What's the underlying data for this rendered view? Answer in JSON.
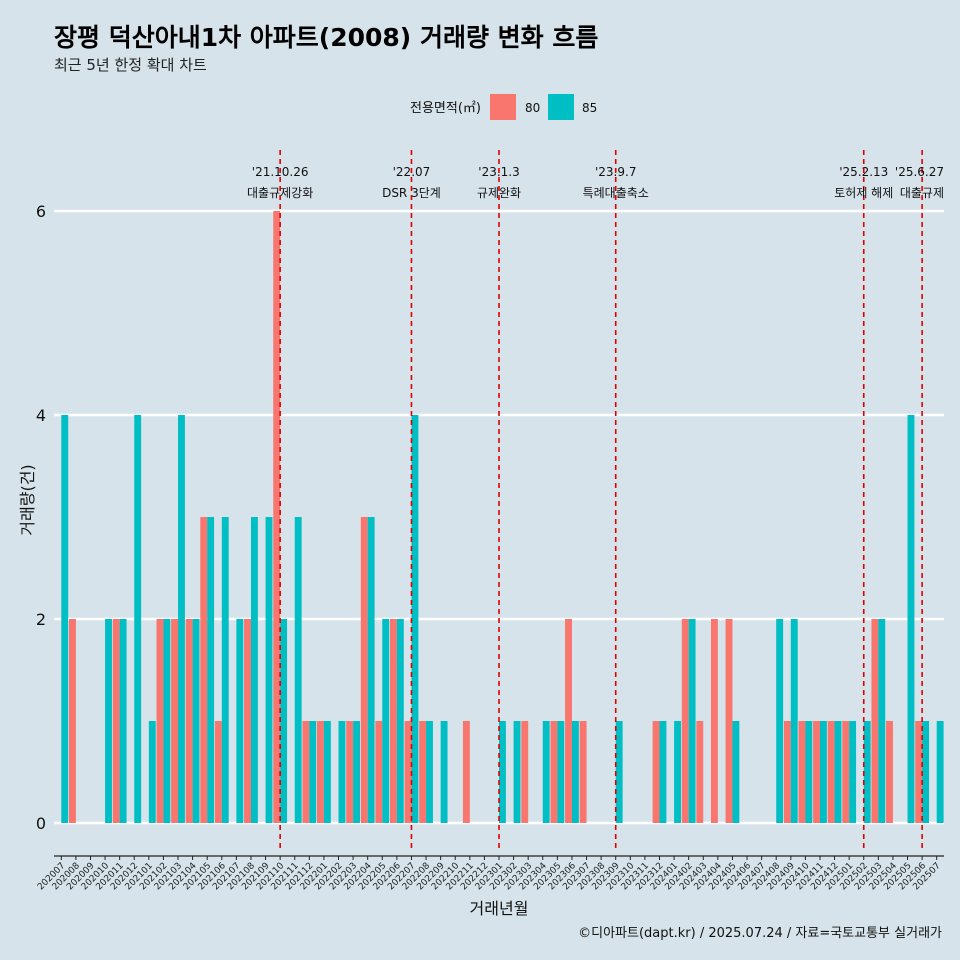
{
  "title": "장평 덕산아내1차 아파트(2008) 거래량 변화 흐름",
  "subtitle": "최근 5년 한정 확대 차트",
  "caption": "©디아파트(dapt.kr) / 2025.07.24 / 자료=국토교통부 실거래가",
  "colors": {
    "s80": "#f8766d",
    "s85": "#00bfc4",
    "ref": "#e00000",
    "bg": "#d6e3ea",
    "grid": "#ffffff"
  },
  "chart_data": {
    "type": "bar",
    "title": "장평 덕산아내1차 아파트(2008) 거래량 변화 흐름",
    "xlabel": "거래년월",
    "ylabel": "거래량(건)",
    "ylim": [
      0,
      6.5
    ],
    "yticks": [
      0,
      2,
      4,
      6
    ],
    "legend": {
      "title": "전용면적(㎡)",
      "position": "top"
    },
    "categories": [
      "202007",
      "202008",
      "202009",
      "202010",
      "202011",
      "202012",
      "202101",
      "202102",
      "202103",
      "202104",
      "202105",
      "202106",
      "202107",
      "202108",
      "202109",
      "202110",
      "202111",
      "202112",
      "202201",
      "202202",
      "202203",
      "202204",
      "202205",
      "202206",
      "202207",
      "202208",
      "202209",
      "202210",
      "202211",
      "202212",
      "202301",
      "202302",
      "202303",
      "202304",
      "202305",
      "202306",
      "202307",
      "202308",
      "202309",
      "202310",
      "202311",
      "202312",
      "202401",
      "202402",
      "202403",
      "202404",
      "202405",
      "202406",
      "202407",
      "202408",
      "202409",
      "202410",
      "202411",
      "202412",
      "202501",
      "202502",
      "202503",
      "202504",
      "202505",
      "202506",
      "202507"
    ],
    "series": [
      {
        "name": "80",
        "values": [
          0,
          2,
          0,
          0,
          2,
          0,
          0,
          2,
          2,
          2,
          3,
          1,
          0,
          2,
          0,
          6,
          0,
          1,
          1,
          0,
          1,
          3,
          1,
          2,
          1,
          1,
          0,
          0,
          1,
          0,
          0,
          0,
          1,
          0,
          1,
          2,
          1,
          0,
          0,
          0,
          0,
          1,
          0,
          2,
          1,
          2,
          2,
          0,
          0,
          0,
          1,
          1,
          1,
          1,
          1,
          0,
          2,
          1,
          0,
          1,
          0
        ]
      },
      {
        "name": "85",
        "values": [
          4,
          0,
          0,
          2,
          2,
          4,
          1,
          2,
          4,
          2,
          3,
          3,
          2,
          3,
          3,
          2,
          3,
          1,
          1,
          1,
          1,
          3,
          2,
          2,
          4,
          1,
          1,
          0,
          0,
          0,
          1,
          1,
          0,
          1,
          1,
          1,
          0,
          0,
          1,
          0,
          0,
          1,
          1,
          2,
          0,
          0,
          1,
          0,
          0,
          2,
          2,
          1,
          1,
          1,
          1,
          1,
          2,
          0,
          4,
          1,
          1
        ]
      }
    ],
    "annotations": [
      {
        "at": "202110",
        "date": "'21.10.26",
        "label": "대출규제강화"
      },
      {
        "at": "202207",
        "date": "'22.07",
        "label": "DSR 3단계"
      },
      {
        "at": "202301",
        "date": "'23.1.3",
        "label": "규제완화"
      },
      {
        "at": "202309",
        "date": "'23.9.7",
        "label": "특례대출축소"
      },
      {
        "at": "202502",
        "date": "'25.2.13",
        "label": "토허제 해제"
      },
      {
        "at": "202506",
        "date": "'25.6.27",
        "label": "대출규제"
      }
    ]
  }
}
